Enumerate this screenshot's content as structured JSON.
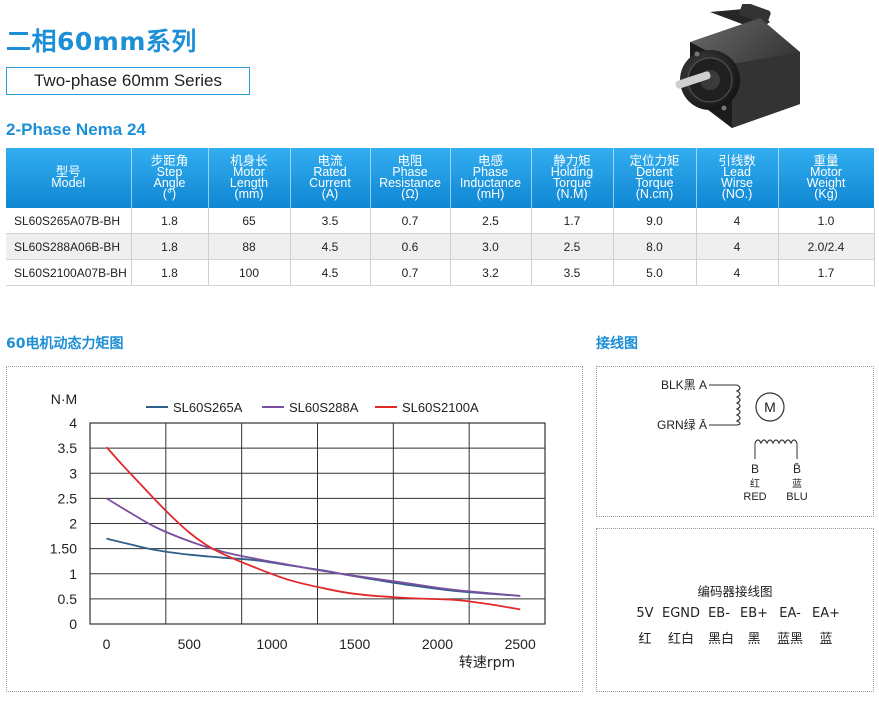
{
  "header": {
    "title_cn": "二相60mm系列",
    "subtitle": "Two-phase 60mm Series",
    "section": "2-Phase Nema 24"
  },
  "table": {
    "columns": [
      {
        "cn": "型号",
        "en": [
          "Model"
        ]
      },
      {
        "cn": "步距角",
        "en": [
          "Step",
          "Angle",
          "(°)"
        ]
      },
      {
        "cn": "机身长",
        "en": [
          "Motor",
          "Length",
          "(mm)"
        ]
      },
      {
        "cn": "电流",
        "en": [
          "Rated",
          "Current",
          "(A)"
        ]
      },
      {
        "cn": "电阻",
        "en": [
          "Phase",
          "Resistance",
          "(Ω)"
        ]
      },
      {
        "cn": "电感",
        "en": [
          "Phase",
          "Inductance",
          "(mH)"
        ]
      },
      {
        "cn": "静力矩",
        "en": [
          "Holding",
          "Torque",
          "(N.M)"
        ]
      },
      {
        "cn": "定位力矩",
        "en": [
          "Detent",
          "Torque",
          "(N.cm)"
        ]
      },
      {
        "cn": "引线数",
        "en": [
          "Lead",
          "Wirse",
          "(NO.)"
        ]
      },
      {
        "cn": "重量",
        "en": [
          "Motor",
          "Weight",
          "(Kg)"
        ]
      }
    ],
    "rows": [
      [
        "SL60S265A07B-BH",
        "1.8",
        "65",
        "3.5",
        "0.7",
        "2.5",
        "1.7",
        "9.0",
        "4",
        "1.0"
      ],
      [
        "SL60S288A06B-BH",
        "1.8",
        "88",
        "4.5",
        "0.6",
        "3.0",
        "2.5",
        "8.0",
        "4",
        "2.0/2.4"
      ],
      [
        "SL60S2100A07B-BH",
        "1.8",
        "100",
        "4.5",
        "0.7",
        "3.2",
        "3.5",
        "5.0",
        "4",
        "1.7"
      ]
    ]
  },
  "sections": {
    "chart_heading": "60电机动态力矩图",
    "wiring_heading": "接线图"
  },
  "chart_data": {
    "type": "line",
    "ylabel": "N·M",
    "xlabel": "转速rpm",
    "xlim": [
      -100,
      2650
    ],
    "ylim": [
      0,
      4
    ],
    "x_ticks": [
      "0",
      "500",
      "1000",
      "1500",
      "2000",
      "2500"
    ],
    "x_tick_values": [
      0,
      500,
      1000,
      1500,
      2000,
      2500
    ],
    "y_ticks": [
      "0",
      "0.5",
      "1",
      "1.50",
      "2",
      "2.5",
      "3",
      "3.5",
      "4"
    ],
    "y_tick_values": [
      0,
      0.5,
      1,
      1.5,
      2,
      2.5,
      3,
      3.5,
      4
    ],
    "legend_position": "top",
    "grid": true,
    "series": [
      {
        "name": "SL60S265A",
        "color": "#2f5f8a",
        "points": [
          [
            0,
            1.7
          ],
          [
            150,
            1.58
          ],
          [
            300,
            1.47
          ],
          [
            500,
            1.38
          ],
          [
            700,
            1.32
          ],
          [
            900,
            1.27
          ],
          [
            1100,
            1.17
          ],
          [
            1300,
            1.07
          ],
          [
            1500,
            0.95
          ],
          [
            1800,
            0.79
          ],
          [
            2100,
            0.66
          ],
          [
            2500,
            0.56
          ]
        ]
      },
      {
        "name": "SL60S288A",
        "color": "#7b4fa0",
        "points": [
          [
            0,
            2.5
          ],
          [
            150,
            2.2
          ],
          [
            300,
            1.92
          ],
          [
            500,
            1.65
          ],
          [
            700,
            1.44
          ],
          [
            900,
            1.3
          ],
          [
            1100,
            1.18
          ],
          [
            1300,
            1.06
          ],
          [
            1500,
            0.96
          ],
          [
            1800,
            0.82
          ],
          [
            2100,
            0.68
          ],
          [
            2500,
            0.56
          ]
        ]
      },
      {
        "name": "SL60S2100A",
        "color": "#e02a2a",
        "points": [
          [
            0,
            3.52
          ],
          [
            100,
            3.15
          ],
          [
            200,
            2.8
          ],
          [
            300,
            2.45
          ],
          [
            400,
            2.12
          ],
          [
            500,
            1.82
          ],
          [
            600,
            1.58
          ],
          [
            700,
            1.4
          ],
          [
            900,
            1.12
          ],
          [
            1100,
            0.88
          ],
          [
            1300,
            0.72
          ],
          [
            1500,
            0.6
          ],
          [
            1800,
            0.52
          ],
          [
            2100,
            0.48
          ],
          [
            2300,
            0.4
          ],
          [
            2500,
            0.29
          ]
        ]
      }
    ]
  },
  "wiring": {
    "blk_label": "BLK黑 A",
    "grn_label": "GRN绿 Ā",
    "motor_symbol": "M",
    "b_pin": "B",
    "b_cn": "红",
    "b_en": "RED",
    "bbar_pin": "B̄",
    "bbar_cn": "蓝",
    "bbar_en": "BLU"
  },
  "encoder": {
    "title": "编码器接线图",
    "pins": [
      "5V",
      "EGND",
      "EB-",
      "EB+",
      "EA-",
      "EA+"
    ],
    "colors": [
      "红",
      "红白",
      "黑白",
      "黑",
      "蓝黑",
      "蓝"
    ]
  }
}
